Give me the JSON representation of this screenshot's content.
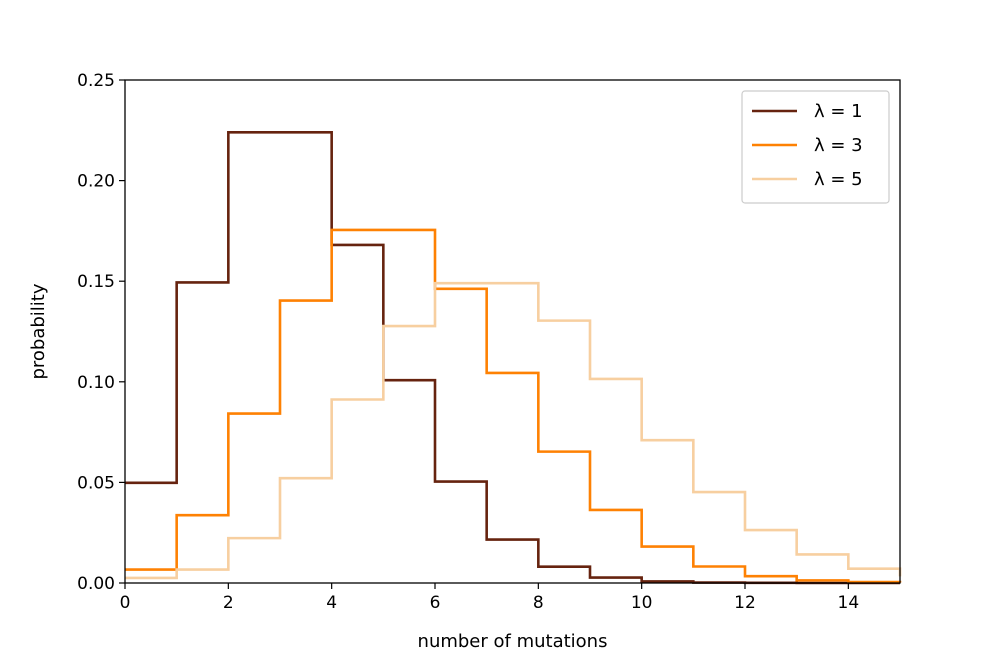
{
  "chart_data": {
    "type": "line",
    "step": "post",
    "xlabel": "number of mutations",
    "ylabel": "probability",
    "xlim": [
      0,
      15
    ],
    "ylim": [
      0,
      0.25
    ],
    "xticks": [
      "0",
      "2",
      "4",
      "6",
      "8",
      "10",
      "12",
      "14"
    ],
    "yticks": [
      "0.00",
      "0.05",
      "0.10",
      "0.15",
      "0.20",
      "0.25"
    ],
    "grid": false,
    "legend_position": "top-right",
    "x": [
      0,
      1,
      2,
      3,
      4,
      5,
      6,
      7,
      8,
      9,
      10,
      11,
      12,
      13,
      14,
      15
    ],
    "series": [
      {
        "name": "λ = 1",
        "color": "#66230f",
        "values": [
          0.0498,
          0.1494,
          0.224,
          0.224,
          0.168,
          0.1008,
          0.0504,
          0.0216,
          0.0081,
          0.0027,
          0.0008,
          0.0002,
          0.0001,
          0.0,
          0.0,
          0.0
        ]
      },
      {
        "name": "λ = 3",
        "color": "#fe8103",
        "values": [
          0.0067,
          0.0337,
          0.0842,
          0.1404,
          0.1755,
          0.1755,
          0.1462,
          0.1044,
          0.0653,
          0.0363,
          0.0181,
          0.0082,
          0.0034,
          0.0013,
          0.0005,
          0.0002
        ]
      },
      {
        "name": "λ = 5",
        "color": "#f7cfa0",
        "values": [
          0.0025,
          0.0067,
          0.0223,
          0.0521,
          0.0912,
          0.1277,
          0.149,
          0.149,
          0.1304,
          0.1014,
          0.071,
          0.0452,
          0.0263,
          0.0142,
          0.0071,
          0.0033
        ]
      }
    ]
  }
}
